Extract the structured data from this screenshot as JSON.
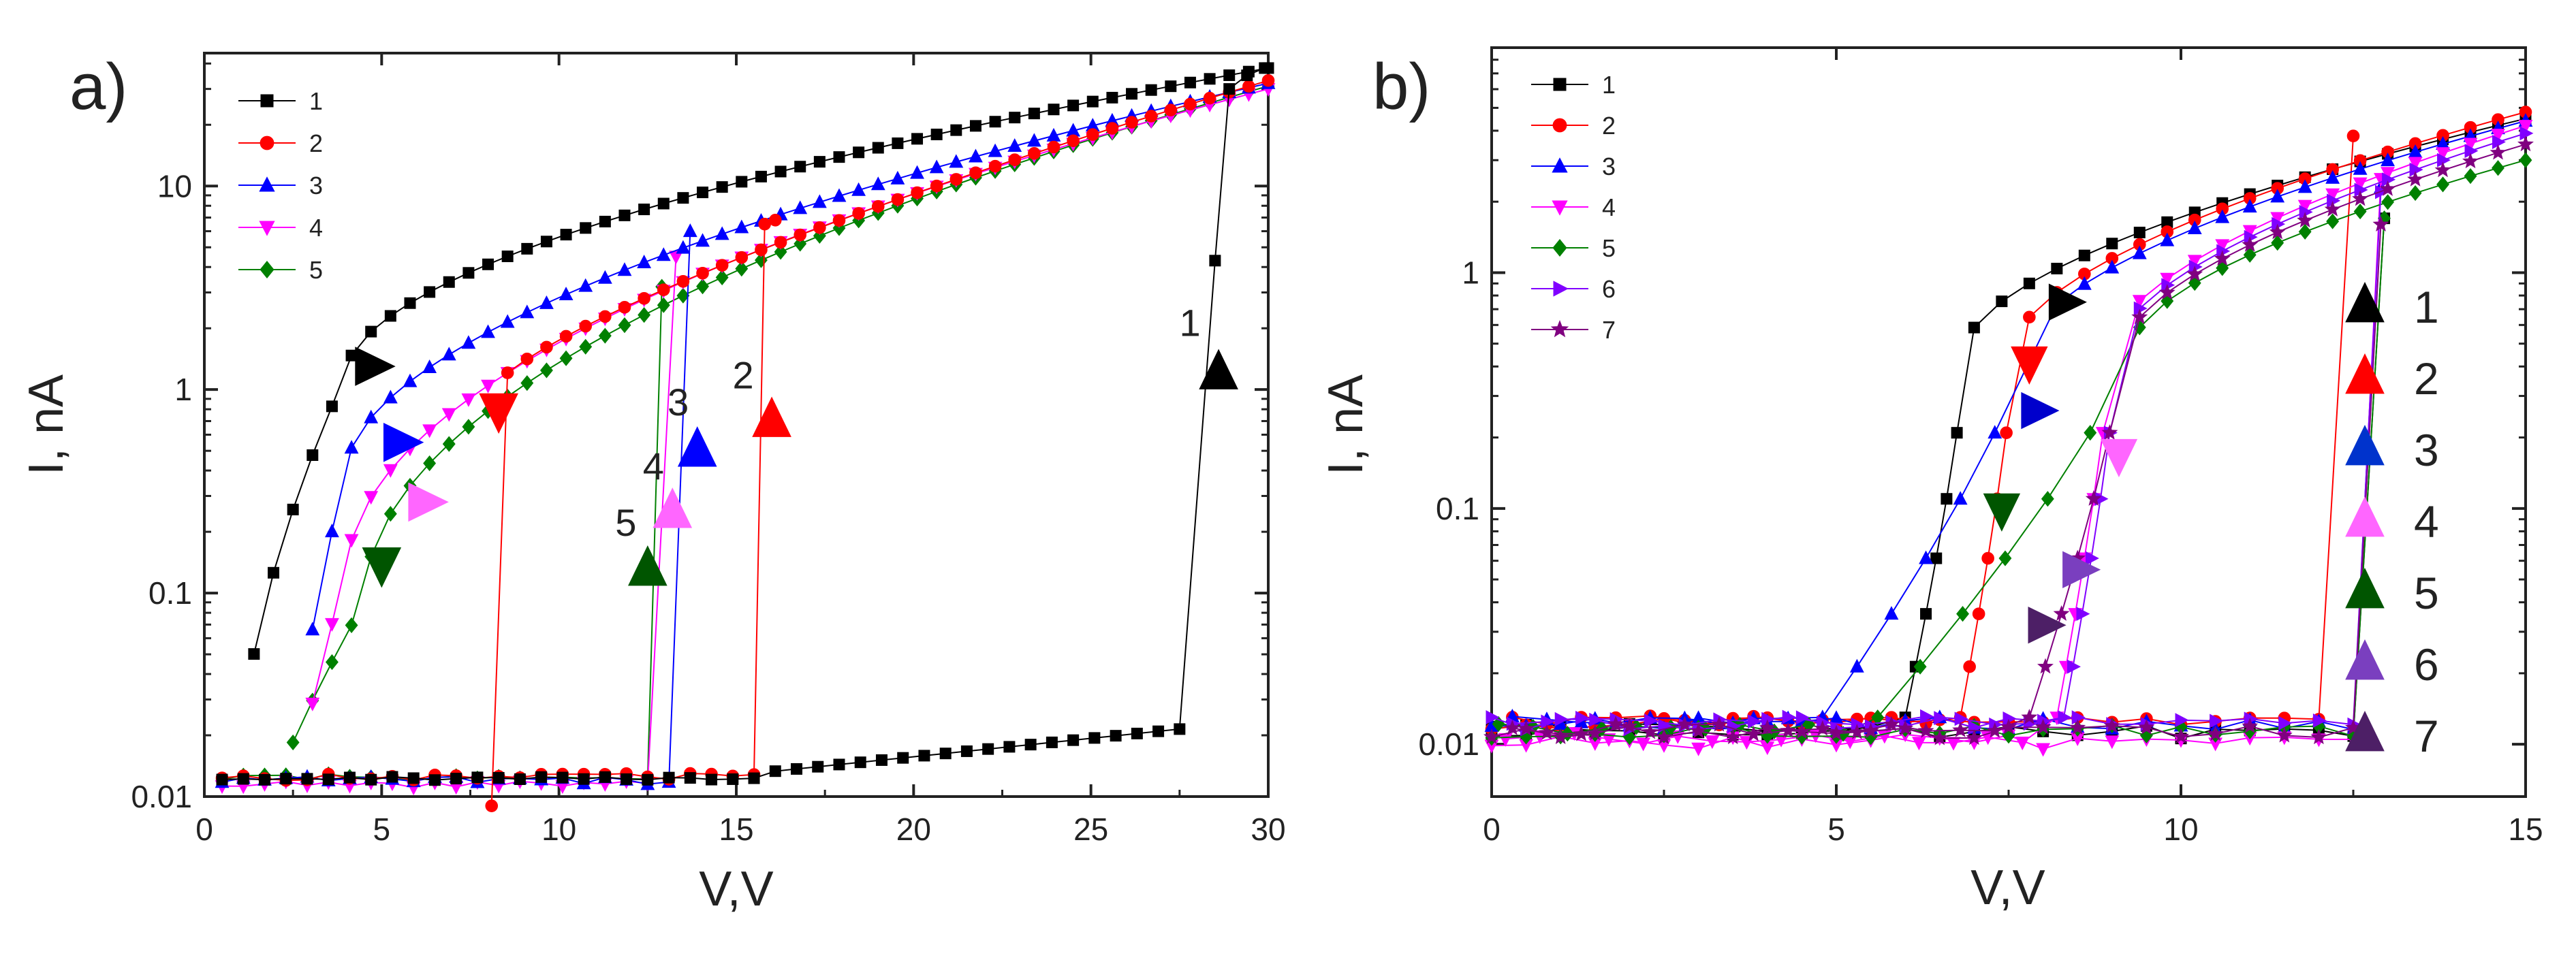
{
  "figure": {
    "panels": [
      {
        "id": "a",
        "label": "a)",
        "xlabel": "V,V",
        "ylabel": "I, nA",
        "xlim": [
          0,
          30
        ],
        "ylim": [
          0.01,
          45
        ],
        "x_ticks": [
          "0",
          "5",
          "10",
          "15",
          "20",
          "25",
          "30"
        ],
        "y_ticks": [
          "0.01",
          "0.1",
          "1",
          "10"
        ],
        "legend": [
          "1",
          "2",
          "3",
          "4",
          "5"
        ],
        "annotation_labels": [
          "1",
          "2",
          "3",
          "4",
          "5"
        ]
      },
      {
        "id": "b",
        "label": "b)",
        "xlabel": "V,V",
        "ylabel": "I, nA",
        "xlim": [
          0,
          15
        ],
        "ylim": [
          0.006,
          9
        ],
        "x_ticks": [
          "0",
          "5",
          "10",
          "15"
        ],
        "y_ticks": [
          "0.01",
          "0.1",
          "1"
        ],
        "legend": [
          "1",
          "2",
          "3",
          "4",
          "5",
          "6",
          "7"
        ],
        "right_legend": [
          "1",
          "2",
          "3",
          "4",
          "5",
          "6",
          "7"
        ]
      }
    ]
  },
  "chart_data": [
    {
      "type": "scatter",
      "title": "a)",
      "xlabel": "V,V",
      "ylabel": "I, nA",
      "yscale": "log",
      "xlim": [
        0,
        30
      ],
      "ylim": [
        0.01,
        45
      ],
      "legend_position": "top-left",
      "series": [
        {
          "name": "1",
          "color": "#000000",
          "marker": "square",
          "forward": {
            "x": [
              0,
              28.1,
              28.5,
              28.9,
              29.3
            ],
            "y": [
              0.012,
              0.022,
              4.3,
              30,
              38
            ],
            "off": [
              0.012,
              0.022
            ]
          },
          "reverse": {
            "on_start": 30,
            "on_y": 38,
            "on_end": 1.0,
            "off_y": 0.012,
            "x0": 0.5
          }
        },
        {
          "name": "2",
          "color": "#ff0000",
          "marker": "circle",
          "forward": {
            "x": [
              0,
              15.5,
              15.8,
              16.1
            ],
            "y": [
              0.012,
              0.014,
              6.5,
              6.8
            ]
          },
          "reverse_drop_x": 8.1
        },
        {
          "name": "3",
          "color": "#0000ff",
          "marker": "triangle-up",
          "forward": {
            "x": [
              0,
              13.4,
              13.7
            ],
            "y": [
              0.012,
              0.013,
              6.0
            ]
          },
          "reverse_drop_x": 2.7
        },
        {
          "name": "4",
          "color": "#ff00ff",
          "marker": "triangle-down",
          "forward": {
            "x": [
              0,
              13.0,
              13.3
            ],
            "y": [
              0.012,
              0.013,
              4.5
            ]
          },
          "reverse_drop_x": 2.8
        },
        {
          "name": "5",
          "color": "#008000",
          "marker": "diamond",
          "forward": {
            "x": [
              0,
              12.6,
              12.9
            ],
            "y": [
              0.012,
              0.013,
              3.2
            ]
          },
          "reverse_drop_x": 2.3
        }
      ],
      "arrows": [
        {
          "label": "1",
          "x": 28.6,
          "y": 1.2,
          "dir": "up",
          "color": "#000000"
        },
        {
          "label": "2",
          "x": 16.0,
          "y": 0.7,
          "dir": "up",
          "color": "#ff0000"
        },
        {
          "label": "3",
          "x": 13.9,
          "y": 0.5,
          "dir": "up",
          "color": "#0000ff"
        },
        {
          "label": "4",
          "x": 13.2,
          "y": 0.25,
          "dir": "up",
          "color": "#ff66ff"
        },
        {
          "label": "5",
          "x": 12.5,
          "y": 0.13,
          "dir": "up",
          "color": "#005500"
        },
        {
          "x": 4.7,
          "y": 1.3,
          "dir": "right",
          "color": "#000000"
        },
        {
          "x": 8.3,
          "y": 0.8,
          "dir": "down",
          "color": "#ff0000"
        },
        {
          "x": 5.5,
          "y": 0.55,
          "dir": "right",
          "color": "#0000ff"
        },
        {
          "x": 6.2,
          "y": 0.28,
          "dir": "right",
          "color": "#ff66ff"
        },
        {
          "x": 5.0,
          "y": 0.14,
          "dir": "down",
          "color": "#005500"
        }
      ]
    },
    {
      "type": "scatter",
      "title": "b)",
      "xlabel": "V,V",
      "ylabel": "I, nA",
      "yscale": "log",
      "xlim": [
        0,
        15
      ],
      "ylim": [
        0.006,
        9
      ],
      "legend_position": "top-left",
      "series": [
        {
          "name": "1",
          "color": "#000000",
          "marker": "square",
          "jump_x": 12.95,
          "jump_top": 1.7,
          "end_y": 4.5,
          "drop_start": 6.0,
          "drop_end": 6.9,
          "low": 0.011
        },
        {
          "name": "2",
          "color": "#ff0000",
          "marker": "circle",
          "jump_x": 12.5,
          "jump_top": 3.8,
          "end_y": 4.8,
          "drop_start": 6.8,
          "drop_end": 7.6,
          "low": 0.012
        },
        {
          "name": "3",
          "color": "#0000ff",
          "marker": "triangle-up",
          "jump_x": 12.9,
          "jump_top": 2.3,
          "end_y": 4.4,
          "drop_start": 4.8,
          "drop_end": 7.8,
          "low": 0.012
        },
        {
          "name": "4",
          "color": "#ff00ff",
          "marker": "triangle-down",
          "jump_x": 12.9,
          "jump_top": 2.5,
          "end_y": 4.2,
          "drop_start": 8.2,
          "drop_end": 9.0,
          "low": 0.01
        },
        {
          "name": "5",
          "color": "#008000",
          "marker": "diamond",
          "jump_x": 12.95,
          "jump_top": 1.7,
          "end_y": 3.0,
          "drop_start": 5.6,
          "drop_end": 9.3,
          "low": 0.011
        },
        {
          "name": "6",
          "color": "#8000ff",
          "marker": "triangle-right",
          "jump_x": 12.9,
          "jump_top": 2.2,
          "end_y": 3.9,
          "drop_start": 8.3,
          "drop_end": 9.1,
          "low": 0.012
        },
        {
          "name": "7",
          "color": "#800080",
          "marker": "star",
          "jump_x": 12.9,
          "jump_top": 1.6,
          "end_y": 3.5,
          "drop_start": 7.8,
          "drop_end": 9.2,
          "low": 0.011
        }
      ],
      "arrows": [
        {
          "x": 8.3,
          "y": 0.75,
          "dir": "right",
          "color": "#000000"
        },
        {
          "x": 7.8,
          "y": 0.42,
          "dir": "down",
          "color": "#ff0000"
        },
        {
          "x": 7.9,
          "y": 0.26,
          "dir": "right",
          "color": "#0000cc"
        },
        {
          "x": 9.1,
          "y": 0.17,
          "dir": "down",
          "color": "#ff66ff"
        },
        {
          "x": 7.4,
          "y": 0.1,
          "dir": "down",
          "color": "#005500"
        },
        {
          "x": 8.5,
          "y": 0.055,
          "dir": "right",
          "color": "#7a3fbf"
        },
        {
          "x": 8.0,
          "y": 0.032,
          "dir": "right",
          "color": "#4d1f66"
        }
      ],
      "right_legend_colors": [
        "#000000",
        "#ff0000",
        "#0033cc",
        "#ff66ff",
        "#005500",
        "#7a3fbf",
        "#4d1f66"
      ]
    }
  ]
}
